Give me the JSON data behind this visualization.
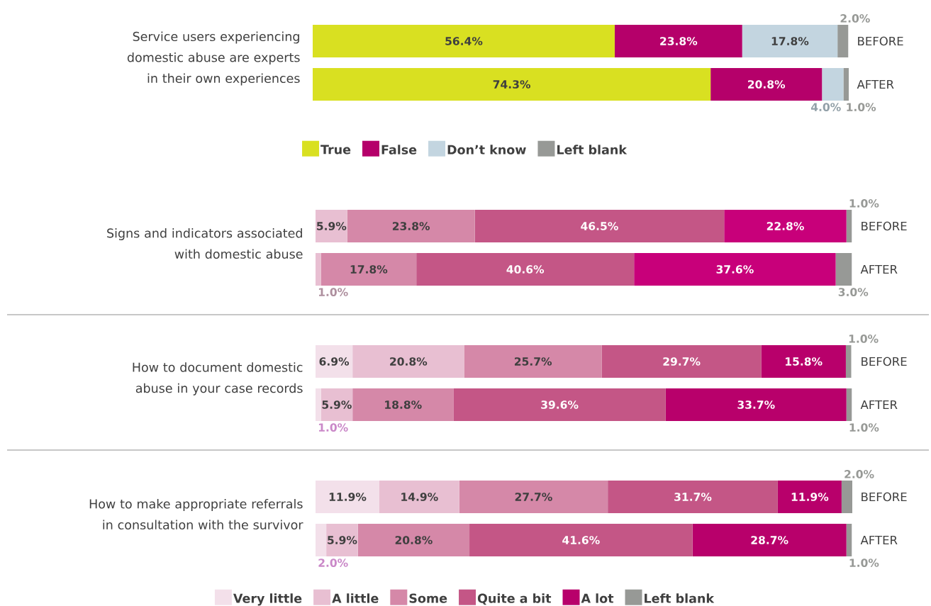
{
  "chart_data": [
    {
      "type": "bar",
      "orientation": "horizontal",
      "stacked": true,
      "title": "Service users experiencing domestic abuse are experts in their own experiences",
      "categories": [
        "BEFORE",
        "AFTER"
      ],
      "xlim": [
        0,
        100.1
      ],
      "tick_labels": "y",
      "legend": "bottom",
      "series": [
        {
          "name": "True",
          "color": "#d9e021",
          "values": [
            56.4,
            74.3
          ],
          "value_labels": [
            "56.4%",
            "74.3%"
          ]
        },
        {
          "name": "False",
          "color": "#b5006a",
          "values": [
            23.8,
            20.8
          ],
          "value_labels": [
            "23.8%",
            "20.8%"
          ]
        },
        {
          "name": "Don’t know",
          "color": "#c3d5e0",
          "values": [
            17.8,
            4.0
          ],
          "value_labels": [
            "17.8%",
            "4.0%"
          ]
        },
        {
          "name": "Left blank",
          "color": "#979996",
          "values": [
            2.0,
            1.0
          ],
          "value_labels": [
            "2.0%",
            "1.0%"
          ]
        }
      ]
    },
    {
      "type": "bar",
      "orientation": "horizontal",
      "stacked": true,
      "title": "Signs and indicators associated with domestic abuse",
      "categories": [
        "BEFORE",
        "AFTER"
      ],
      "xlim": [
        0,
        100.1
      ],
      "tick_labels": "y",
      "series": [
        {
          "color": "#e8bfd2",
          "values": [
            5.9,
            1.0
          ],
          "value_labels": [
            "5.9%",
            "1.0%"
          ]
        },
        {
          "color": "#d588a8",
          "values": [
            23.8,
            17.8
          ],
          "value_labels": [
            "23.8%",
            "17.8%"
          ]
        },
        {
          "color": "#c45686",
          "values": [
            46.5,
            40.6
          ],
          "value_labels": [
            "46.5%",
            "40.6%"
          ]
        },
        {
          "color": "#c8007a",
          "values": [
            22.8,
            37.6
          ],
          "value_labels": [
            "22.8%",
            "37.6%"
          ]
        },
        {
          "color": "#979996",
          "values": [
            1.0,
            3.0
          ],
          "value_labels": [
            "1.0%",
            "3.0%"
          ]
        }
      ]
    },
    {
      "type": "bar",
      "orientation": "horizontal",
      "stacked": true,
      "title": "How to document domestic abuse in your case records",
      "categories": [
        "BEFORE",
        "AFTER"
      ],
      "xlim": [
        0,
        100.1
      ],
      "tick_labels": "y",
      "series": [
        {
          "color": "#f3e0ea",
          "values": [
            6.9,
            1.0
          ],
          "value_labels": [
            "6.9%",
            "1.0%"
          ]
        },
        {
          "color": "#e8bfd2",
          "values": [
            20.8,
            5.9
          ],
          "value_labels": [
            "20.8%",
            "5.9%"
          ]
        },
        {
          "color": "#d588a8",
          "values": [
            25.7,
            18.8
          ],
          "value_labels": [
            "25.7%",
            "18.8%"
          ]
        },
        {
          "color": "#c45686",
          "values": [
            29.7,
            39.6
          ],
          "value_labels": [
            "29.7%",
            "39.6%"
          ]
        },
        {
          "color": "#b8006b",
          "values": [
            15.8,
            33.7
          ],
          "value_labels": [
            "15.8%",
            "33.7%"
          ]
        },
        {
          "color": "#979996",
          "values": [
            1.0,
            1.0
          ],
          "value_labels": [
            "1.0%",
            "1.0%"
          ]
        }
      ]
    },
    {
      "type": "bar",
      "orientation": "horizontal",
      "stacked": true,
      "title": "How to make appropriate referrals in consultation with the survivor",
      "categories": [
        "BEFORE",
        "AFTER"
      ],
      "xlim": [
        0,
        100.1
      ],
      "tick_labels": "y",
      "legend": "bottom",
      "series": [
        {
          "name": "Very little",
          "color": "#f3e0ea",
          "values": [
            11.9,
            2.0
          ],
          "value_labels": [
            "11.9%",
            "2.0%"
          ]
        },
        {
          "name": "A little",
          "color": "#e8bfd2",
          "values": [
            14.9,
            5.9
          ],
          "value_labels": [
            "14.9%",
            "5.9%"
          ]
        },
        {
          "name": "Some",
          "color": "#d588a8",
          "values": [
            27.7,
            20.8
          ],
          "value_labels": [
            "27.7%",
            "20.8%"
          ]
        },
        {
          "name": "Quite a bit",
          "color": "#c45686",
          "values": [
            31.7,
            41.6
          ],
          "value_labels": [
            "31.7%",
            "41.6%"
          ]
        },
        {
          "name": "A lot",
          "color": "#b8006b",
          "values": [
            11.9,
            28.7
          ],
          "value_labels": [
            "11.9%",
            "28.7%"
          ]
        },
        {
          "name": "Left blank",
          "color": "#979996",
          "values": [
            2.0,
            1.0
          ],
          "value_labels": [
            "2.0%",
            "1.0%"
          ]
        }
      ]
    }
  ]
}
